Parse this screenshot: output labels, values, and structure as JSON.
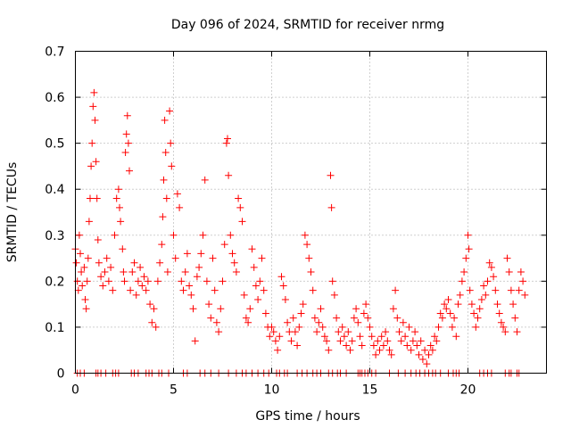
{
  "chart_data": {
    "type": "scatter",
    "title": "Day 096 of 2024, SRMTID for receiver nrmg",
    "xlabel": "GPS time / hours",
    "ylabel": "SRMTID / TECUs",
    "xlim": [
      0,
      24
    ],
    "ylim": [
      0,
      0.7
    ],
    "xticks": [
      0,
      5,
      10,
      15,
      20
    ],
    "yticks": [
      0,
      0.1,
      0.2,
      0.3,
      0.4,
      0.5,
      0.6,
      0.7
    ],
    "grid": true,
    "marker": "+",
    "color": "#ff0000",
    "series": [
      {
        "name": "SRMTID",
        "points": [
          [
            0.0,
            0.27
          ],
          [
            0.05,
            0.24
          ],
          [
            0.1,
            0.2
          ],
          [
            0.15,
            0.18
          ],
          [
            0.2,
            0.3
          ],
          [
            0.25,
            0.26
          ],
          [
            0.3,
            0.22
          ],
          [
            0.35,
            0.19
          ],
          [
            0.45,
            0.23
          ],
          [
            0.5,
            0.16
          ],
          [
            0.55,
            0.14
          ],
          [
            0.6,
            0.2
          ],
          [
            0.65,
            0.25
          ],
          [
            0.7,
            0.33
          ],
          [
            0.75,
            0.38
          ],
          [
            0.8,
            0.45
          ],
          [
            0.85,
            0.5
          ],
          [
            0.9,
            0.58
          ],
          [
            0.95,
            0.61
          ],
          [
            1.0,
            0.55
          ],
          [
            1.05,
            0.46
          ],
          [
            1.1,
            0.38
          ],
          [
            1.15,
            0.29
          ],
          [
            1.2,
            0.24
          ],
          [
            1.3,
            0.21
          ],
          [
            1.4,
            0.19
          ],
          [
            1.5,
            0.22
          ],
          [
            1.6,
            0.25
          ],
          [
            1.7,
            0.2
          ],
          [
            1.8,
            0.23
          ],
          [
            1.9,
            0.18
          ],
          [
            2.0,
            0.3
          ],
          [
            2.1,
            0.38
          ],
          [
            2.2,
            0.4
          ],
          [
            2.25,
            0.36
          ],
          [
            2.3,
            0.33
          ],
          [
            2.4,
            0.27
          ],
          [
            2.45,
            0.22
          ],
          [
            2.5,
            0.2
          ],
          [
            2.55,
            0.48
          ],
          [
            2.6,
            0.52
          ],
          [
            2.65,
            0.56
          ],
          [
            2.7,
            0.5
          ],
          [
            2.75,
            0.44
          ],
          [
            2.8,
            0.18
          ],
          [
            2.9,
            0.22
          ],
          [
            3.0,
            0.24
          ],
          [
            3.1,
            0.17
          ],
          [
            3.2,
            0.2
          ],
          [
            3.3,
            0.23
          ],
          [
            3.4,
            0.19
          ],
          [
            3.5,
            0.21
          ],
          [
            3.6,
            0.18
          ],
          [
            3.7,
            0.2
          ],
          [
            3.8,
            0.15
          ],
          [
            3.9,
            0.11
          ],
          [
            4.0,
            0.14
          ],
          [
            4.1,
            0.1
          ],
          [
            4.2,
            0.2
          ],
          [
            4.3,
            0.24
          ],
          [
            4.4,
            0.28
          ],
          [
            4.45,
            0.34
          ],
          [
            4.5,
            0.42
          ],
          [
            4.55,
            0.55
          ],
          [
            4.6,
            0.48
          ],
          [
            4.65,
            0.38
          ],
          [
            4.7,
            0.22
          ],
          [
            4.8,
            0.57
          ],
          [
            4.85,
            0.5
          ],
          [
            4.9,
            0.45
          ],
          [
            5.0,
            0.3
          ],
          [
            5.1,
            0.25
          ],
          [
            5.2,
            0.39
          ],
          [
            5.3,
            0.36
          ],
          [
            5.4,
            0.2
          ],
          [
            5.5,
            0.18
          ],
          [
            5.6,
            0.22
          ],
          [
            5.7,
            0.26
          ],
          [
            5.8,
            0.19
          ],
          [
            5.9,
            0.17
          ],
          [
            6.0,
            0.14
          ],
          [
            6.1,
            0.07
          ],
          [
            6.2,
            0.21
          ],
          [
            6.3,
            0.23
          ],
          [
            6.4,
            0.26
          ],
          [
            6.5,
            0.3
          ],
          [
            6.6,
            0.42
          ],
          [
            6.7,
            0.2
          ],
          [
            6.8,
            0.15
          ],
          [
            6.9,
            0.12
          ],
          [
            7.0,
            0.25
          ],
          [
            7.1,
            0.18
          ],
          [
            7.2,
            0.11
          ],
          [
            7.3,
            0.09
          ],
          [
            7.4,
            0.14
          ],
          [
            7.5,
            0.2
          ],
          [
            7.6,
            0.28
          ],
          [
            7.7,
            0.5
          ],
          [
            7.75,
            0.51
          ],
          [
            7.8,
            0.43
          ],
          [
            7.9,
            0.3
          ],
          [
            8.0,
            0.26
          ],
          [
            8.1,
            0.24
          ],
          [
            8.2,
            0.22
          ],
          [
            8.3,
            0.38
          ],
          [
            8.4,
            0.36
          ],
          [
            8.5,
            0.33
          ],
          [
            8.6,
            0.17
          ],
          [
            8.7,
            0.12
          ],
          [
            8.8,
            0.11
          ],
          [
            8.9,
            0.14
          ],
          [
            9.0,
            0.27
          ],
          [
            9.1,
            0.23
          ],
          [
            9.2,
            0.19
          ],
          [
            9.3,
            0.16
          ],
          [
            9.4,
            0.2
          ],
          [
            9.5,
            0.25
          ],
          [
            9.6,
            0.18
          ],
          [
            9.7,
            0.13
          ],
          [
            9.8,
            0.1
          ],
          [
            9.9,
            0.08
          ],
          [
            10.0,
            0.1
          ],
          [
            10.1,
            0.09
          ],
          [
            10.2,
            0.07
          ],
          [
            10.3,
            0.05
          ],
          [
            10.4,
            0.08
          ],
          [
            10.5,
            0.21
          ],
          [
            10.6,
            0.19
          ],
          [
            10.7,
            0.16
          ],
          [
            10.8,
            0.11
          ],
          [
            10.9,
            0.09
          ],
          [
            11.0,
            0.07
          ],
          [
            11.1,
            0.12
          ],
          [
            11.2,
            0.09
          ],
          [
            11.3,
            0.06
          ],
          [
            11.4,
            0.1
          ],
          [
            11.5,
            0.13
          ],
          [
            11.6,
            0.15
          ],
          [
            11.7,
            0.3
          ],
          [
            11.8,
            0.28
          ],
          [
            11.9,
            0.25
          ],
          [
            12.0,
            0.22
          ],
          [
            12.1,
            0.18
          ],
          [
            12.2,
            0.12
          ],
          [
            12.3,
            0.09
          ],
          [
            12.4,
            0.11
          ],
          [
            12.5,
            0.14
          ],
          [
            12.6,
            0.1
          ],
          [
            12.7,
            0.08
          ],
          [
            12.8,
            0.07
          ],
          [
            12.9,
            0.05
          ],
          [
            13.0,
            0.43
          ],
          [
            13.05,
            0.36
          ],
          [
            13.1,
            0.2
          ],
          [
            13.2,
            0.17
          ],
          [
            13.3,
            0.12
          ],
          [
            13.4,
            0.09
          ],
          [
            13.5,
            0.07
          ],
          [
            13.6,
            0.1
          ],
          [
            13.7,
            0.08
          ],
          [
            13.8,
            0.06
          ],
          [
            13.9,
            0.09
          ],
          [
            14.0,
            0.05
          ],
          [
            14.1,
            0.07
          ],
          [
            14.2,
            0.12
          ],
          [
            14.3,
            0.14
          ],
          [
            14.4,
            0.11
          ],
          [
            14.5,
            0.08
          ],
          [
            14.6,
            0.06
          ],
          [
            14.7,
            0.13
          ],
          [
            14.8,
            0.15
          ],
          [
            14.9,
            0.12
          ],
          [
            15.0,
            0.1
          ],
          [
            15.1,
            0.08
          ],
          [
            15.2,
            0.06
          ],
          [
            15.3,
            0.04
          ],
          [
            15.4,
            0.07
          ],
          [
            15.5,
            0.05
          ],
          [
            15.6,
            0.08
          ],
          [
            15.7,
            0.06
          ],
          [
            15.8,
            0.09
          ],
          [
            15.9,
            0.07
          ],
          [
            16.0,
            0.05
          ],
          [
            16.1,
            0.04
          ],
          [
            16.2,
            0.14
          ],
          [
            16.3,
            0.18
          ],
          [
            16.4,
            0.12
          ],
          [
            16.5,
            0.09
          ],
          [
            16.6,
            0.07
          ],
          [
            16.7,
            0.11
          ],
          [
            16.8,
            0.08
          ],
          [
            16.9,
            0.06
          ],
          [
            17.0,
            0.1
          ],
          [
            17.1,
            0.05
          ],
          [
            17.2,
            0.07
          ],
          [
            17.3,
            0.09
          ],
          [
            17.4,
            0.06
          ],
          [
            17.5,
            0.04
          ],
          [
            17.6,
            0.07
          ],
          [
            17.7,
            0.03
          ],
          [
            17.8,
            0.05
          ],
          [
            17.9,
            0.02
          ],
          [
            18.0,
            0.04
          ],
          [
            18.1,
            0.06
          ],
          [
            18.2,
            0.05
          ],
          [
            18.3,
            0.08
          ],
          [
            18.4,
            0.07
          ],
          [
            18.5,
            0.1
          ],
          [
            18.6,
            0.13
          ],
          [
            18.7,
            0.12
          ],
          [
            18.8,
            0.15
          ],
          [
            18.9,
            0.14
          ],
          [
            19.0,
            0.16
          ],
          [
            19.1,
            0.13
          ],
          [
            19.2,
            0.1
          ],
          [
            19.3,
            0.12
          ],
          [
            19.4,
            0.08
          ],
          [
            19.5,
            0.15
          ],
          [
            19.6,
            0.17
          ],
          [
            19.7,
            0.2
          ],
          [
            19.8,
            0.22
          ],
          [
            19.9,
            0.25
          ],
          [
            20.0,
            0.3
          ],
          [
            20.05,
            0.27
          ],
          [
            20.1,
            0.18
          ],
          [
            20.2,
            0.15
          ],
          [
            20.3,
            0.13
          ],
          [
            20.4,
            0.1
          ],
          [
            20.5,
            0.12
          ],
          [
            20.6,
            0.14
          ],
          [
            20.7,
            0.16
          ],
          [
            20.8,
            0.19
          ],
          [
            20.9,
            0.17
          ],
          [
            21.0,
            0.2
          ],
          [
            21.1,
            0.24
          ],
          [
            21.2,
            0.23
          ],
          [
            21.3,
            0.21
          ],
          [
            21.4,
            0.18
          ],
          [
            21.5,
            0.15
          ],
          [
            21.6,
            0.13
          ],
          [
            21.7,
            0.11
          ],
          [
            21.8,
            0.1
          ],
          [
            21.9,
            0.09
          ],
          [
            22.0,
            0.25
          ],
          [
            22.1,
            0.22
          ],
          [
            22.2,
            0.18
          ],
          [
            22.3,
            0.15
          ],
          [
            22.4,
            0.12
          ],
          [
            22.5,
            0.09
          ],
          [
            22.6,
            0.18
          ],
          [
            22.7,
            0.22
          ],
          [
            22.8,
            0.2
          ],
          [
            22.9,
            0.17
          ]
        ],
        "zero_points": [
          0.1,
          0.25,
          0.45,
          1.05,
          1.15,
          1.3,
          1.55,
          1.9,
          2.05,
          2.2,
          2.85,
          3.0,
          3.2,
          3.6,
          3.75,
          3.9,
          4.25,
          4.4,
          4.75,
          5.5,
          5.7,
          6.35,
          6.6,
          6.9,
          7.3,
          7.8,
          8.2,
          8.5,
          8.7,
          9.0,
          9.3,
          9.6,
          9.85,
          10.25,
          10.4,
          10.65,
          10.8,
          11.3,
          11.55,
          11.8,
          12.1,
          12.3,
          12.5,
          12.9,
          13.1,
          13.35,
          13.5,
          13.8,
          14.4,
          14.5,
          14.6,
          14.75,
          14.9,
          15.1,
          15.3,
          16.0,
          16.45,
          16.8,
          17.1,
          17.35,
          17.55,
          17.8,
          18.0,
          18.2,
          18.35,
          18.6,
          19.0,
          19.25,
          19.4,
          19.55,
          20.6,
          20.8,
          21.0,
          21.2,
          21.9,
          22.1,
          22.2,
          22.5,
          22.6
        ]
      }
    ]
  }
}
